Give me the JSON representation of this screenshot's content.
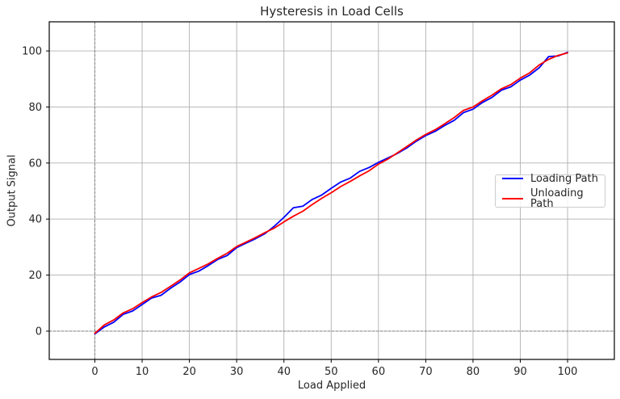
{
  "chart_data": {
    "type": "line",
    "title": "Hysteresis in Load Cells",
    "xlabel": "Load Applied",
    "ylabel": "Output Signal",
    "xlim": [
      -9.65,
      109.9
    ],
    "ylim": [
      -10.1,
      110.4
    ],
    "x_ticks": [
      0,
      10,
      20,
      30,
      40,
      50,
      60,
      70,
      80,
      90,
      100
    ],
    "y_ticks": [
      0,
      20,
      40,
      60,
      80,
      100
    ],
    "grid": true,
    "legend_position": "center right",
    "colors": {
      "grid": "#b0b0b0",
      "spine": "#000000",
      "text": "#262626",
      "zero_line": "#808080",
      "background": "#ffffff"
    },
    "zero_lines": {
      "vertical_at_x": 0,
      "horizontal_at_y": 0,
      "style": "dashed"
    },
    "x": [
      0,
      2,
      4,
      6,
      8,
      10,
      12,
      14,
      16,
      18,
      20,
      22,
      24,
      26,
      28,
      30,
      32,
      34,
      36,
      38,
      40,
      42,
      44,
      46,
      48,
      50,
      52,
      54,
      56,
      58,
      60,
      62,
      64,
      66,
      68,
      70,
      72,
      74,
      76,
      78,
      80,
      82,
      84,
      86,
      88,
      90,
      92,
      94,
      96,
      98,
      100
    ],
    "series": [
      {
        "name": "Loading Path",
        "color": "#0000ff",
        "values": [
          -1.0,
          1.5,
          3.2,
          6.0,
          7.2,
          9.5,
          11.8,
          12.8,
          15.3,
          17.5,
          20.2,
          21.4,
          23.4,
          25.6,
          27.0,
          29.8,
          31.4,
          33.0,
          34.8,
          37.5,
          40.6,
          44.0,
          44.6,
          47.0,
          48.6,
          51.0,
          53.2,
          54.6,
          57.0,
          58.4,
          60.2,
          61.8,
          63.4,
          65.4,
          67.8,
          69.8,
          71.3,
          73.4,
          75.2,
          78.0,
          79.2,
          81.6,
          83.4,
          86.0,
          87.2,
          89.6,
          91.4,
          94.0,
          98.0,
          98.2,
          99.5
        ]
      },
      {
        "name": "Unloading Path",
        "color": "#ff0000",
        "values": [
          -0.8,
          2.2,
          4.0,
          6.5,
          8.0,
          10.2,
          12.2,
          13.8,
          16.0,
          18.2,
          20.8,
          22.4,
          24.0,
          26.0,
          27.8,
          30.2,
          31.8,
          33.4,
          35.2,
          36.8,
          39.0,
          41.0,
          42.8,
          45.2,
          47.4,
          49.4,
          51.6,
          53.4,
          55.4,
          57.2,
          59.6,
          61.4,
          63.6,
          65.9,
          68.2,
          70.2,
          71.9,
          74.0,
          76.2,
          78.8,
          80.0,
          82.2,
          84.2,
          86.5,
          88.0,
          90.3,
          92.2,
          95.0,
          97.0,
          98.4,
          99.3
        ]
      }
    ]
  }
}
